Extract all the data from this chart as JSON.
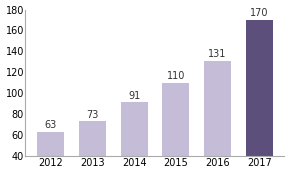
{
  "categories": [
    "2012",
    "2013",
    "2014",
    "2015",
    "2016",
    "2017"
  ],
  "values": [
    63,
    73,
    91,
    110,
    131,
    170
  ],
  "bar_colors": [
    "#c5bcd8",
    "#c5bcd8",
    "#c5bcd8",
    "#c5bcd8",
    "#c5bcd8",
    "#5c4f7c"
  ],
  "ylim": [
    40,
    180
  ],
  "yticks": [
    40,
    60,
    80,
    100,
    120,
    140,
    160,
    180
  ],
  "background_color": "#ffffff",
  "label_fontsize": 7,
  "tick_fontsize": 7,
  "bar_width": 0.65,
  "spine_color": "#aaaaaa",
  "figsize": [
    2.9,
    1.74
  ],
  "dpi": 100
}
